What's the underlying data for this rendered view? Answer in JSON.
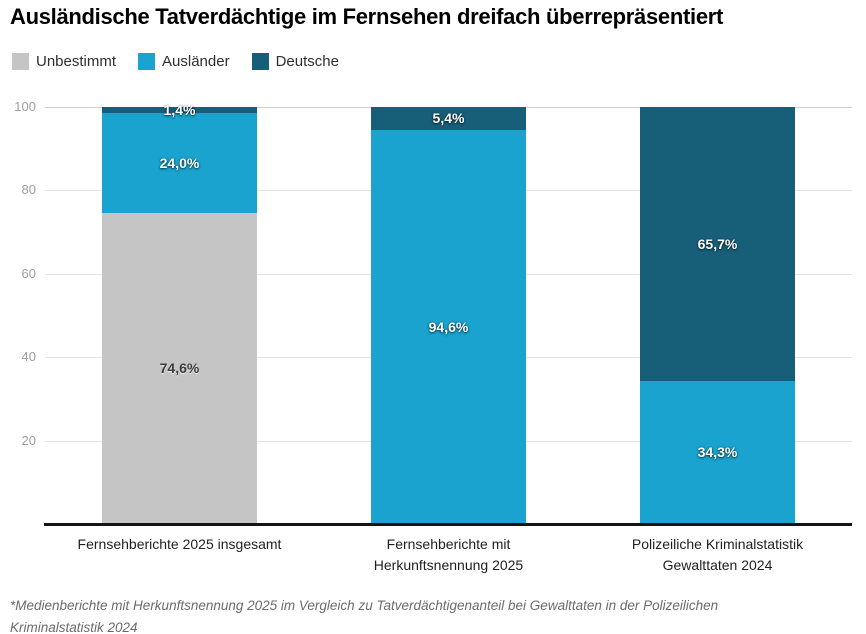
{
  "chart_data": {
    "type": "bar",
    "stacked": true,
    "title": "Ausländische Tatverdächtige im Fernsehen dreifach überrepräsentiert",
    "footnote": "*Medienberichte mit Herkunftsnennung 2025 im Vergleich zu Tatverdächtigenanteil bei Gewalttaten in der Polizeilichen\nKriminalstatistik 2024",
    "legend_position": "top-left",
    "grid": true,
    "categories": [
      "Fernsehberichte 2025 insgesamt",
      "Fernsehberichte mit\nHerkunftsnennung 2025",
      "Polizeiliche Kriminalstatistik\nGewalttaten 2024"
    ],
    "series": [
      {
        "name": "Unbestimmt",
        "color": "#c5c5c5",
        "label_color": "#3d3d3d",
        "values": [
          74.6,
          0,
          0
        ],
        "labels": [
          "74,6%",
          "",
          ""
        ]
      },
      {
        "name": "Ausländer",
        "color": "#19a3ce",
        "label_color": "#ffffff",
        "values": [
          24.0,
          94.6,
          34.3
        ],
        "labels": [
          "24,0%",
          "94,6%",
          "34,3%"
        ]
      },
      {
        "name": "Deutsche",
        "color": "#175f79",
        "label_color": "#ffffff",
        "values": [
          1.4,
          5.4,
          65.7
        ],
        "labels": [
          "1,4%",
          "5,4%",
          "65,7%"
        ]
      }
    ],
    "y_axis": {
      "min": 0,
      "max": 100,
      "ticks": [
        100,
        80,
        60,
        40,
        20
      ]
    },
    "value_suffix": "%",
    "style": {
      "axis_line_color": "#141414",
      "gridline_color": "#e4e4e4",
      "top_gridline_color": "#cfcfcf",
      "tick_label_color": "#9d9d9d",
      "background": "#ffffff"
    }
  }
}
